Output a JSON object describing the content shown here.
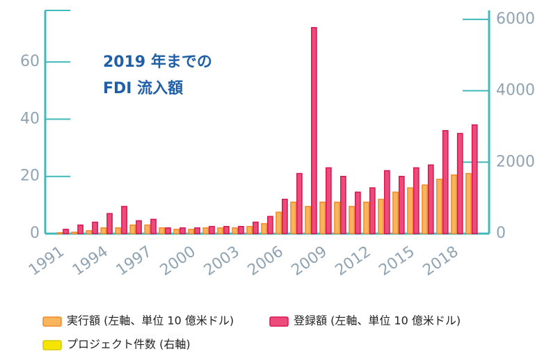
{
  "chart_data": {
    "type": "bar",
    "title": [
      "2019 年までの",
      "FDI 流入額"
    ],
    "x": [
      1991,
      1992,
      1993,
      1994,
      1995,
      1996,
      1997,
      1998,
      1999,
      2000,
      2001,
      2002,
      2003,
      2004,
      2005,
      2006,
      2007,
      2008,
      2009,
      2010,
      2011,
      2012,
      2013,
      2014,
      2015,
      2016,
      2017,
      2018,
      2019
    ],
    "xlim": [
      1989.8,
      2020.2
    ],
    "xticks": [
      1991,
      1994,
      1997,
      2000,
      2003,
      2006,
      2009,
      2012,
      2015,
      2018
    ],
    "ylim": [
      0,
      78
    ],
    "yticks": [
      0,
      20,
      40,
      60
    ],
    "y2lim": [
      0,
      6250
    ],
    "y2ticks": [
      0,
      2000,
      4000,
      6000
    ],
    "series": [
      {
        "name": "実行額 (左軸、単位 10 億米ドル)",
        "color": "#f9b55e",
        "values": [
          0.3,
          0.5,
          1,
          2,
          2,
          3,
          3,
          2,
          1.5,
          1.5,
          2,
          2,
          2,
          2.5,
          3.5,
          7.5,
          11,
          9.5,
          11,
          11,
          9.5,
          11,
          12,
          14.5,
          16,
          17,
          19,
          20.5,
          21
        ]
      },
      {
        "name": "登録額 (左軸、単位 10 億米ドル)",
        "color": "#ec4b7c",
        "values": [
          1.5,
          3,
          4,
          7,
          9.5,
          4.5,
          5,
          2,
          2,
          2,
          2.5,
          2.5,
          2.5,
          4,
          6,
          12,
          21,
          72,
          23,
          20,
          14.5,
          16,
          22,
          20,
          23,
          24,
          36,
          35,
          38
        ]
      },
      {
        "name": "プロジェクト件数 (右軸)",
        "color": "#f5e400",
        "axis": "y2",
        "values": [
          null,
          null,
          null,
          null,
          null,
          null,
          null,
          null,
          null,
          null,
          null,
          null,
          null,
          null,
          null,
          null,
          null,
          null,
          null,
          null,
          null,
          null,
          null,
          null,
          null,
          null,
          null,
          null,
          null
        ]
      }
    ]
  }
}
